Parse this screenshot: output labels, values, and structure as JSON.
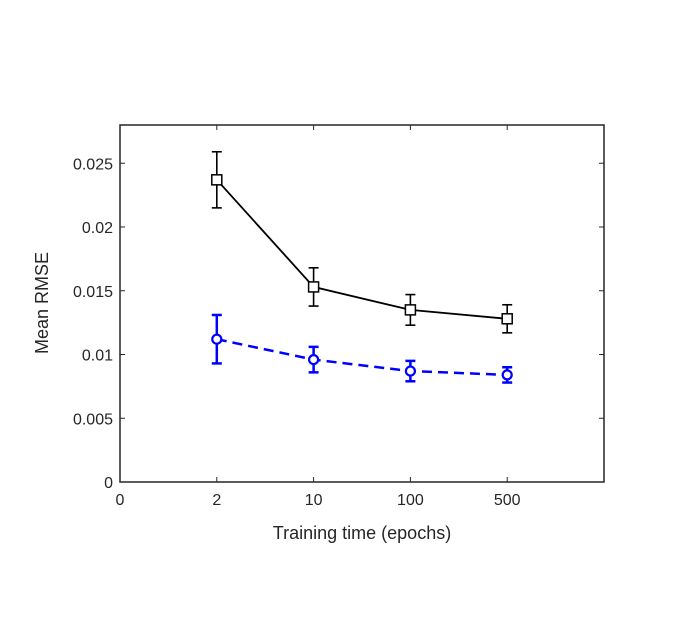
{
  "chart_data": {
    "type": "line",
    "xlabel": "Training time (epochs)",
    "ylabel": "Mean RMSE",
    "x_tick_labels": [
      "0",
      "2",
      "10",
      "100",
      "500"
    ],
    "y_ticks": [
      0,
      0.005,
      0.01,
      0.015,
      0.02,
      0.025
    ],
    "y_tick_labels": [
      "0",
      "0.005",
      "0.01",
      "0.015",
      "0.02",
      "0.025"
    ],
    "ylim": [
      0,
      0.028
    ],
    "grid": false,
    "categories": [
      "2",
      "10",
      "100",
      "500"
    ],
    "series": [
      {
        "marker": "square",
        "line_style": "solid",
        "color": "#000000",
        "values": [
          0.0237,
          0.0153,
          0.0135,
          0.0128
        ],
        "error": [
          0.0022,
          0.0015,
          0.0012,
          0.0011
        ]
      },
      {
        "marker": "circle",
        "line_style": "dashed",
        "color": "#0000ff",
        "values": [
          0.0112,
          0.0096,
          0.0087,
          0.0084
        ],
        "error": [
          0.0019,
          0.001,
          0.0008,
          0.0006
        ]
      }
    ]
  }
}
